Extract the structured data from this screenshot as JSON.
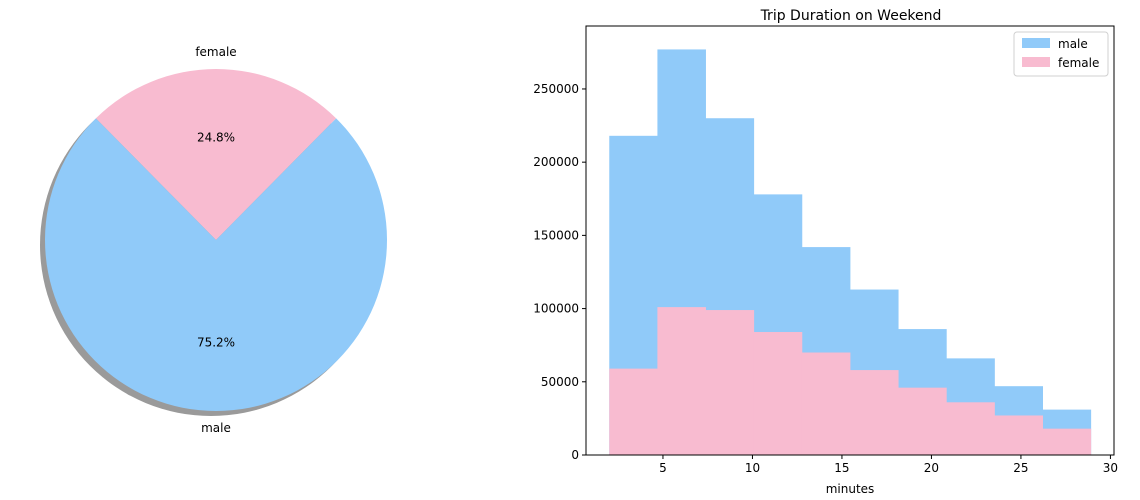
{
  "colors": {
    "male": "#90caf9",
    "female": "#f8bbd0",
    "shadow": "#9a9a9a",
    "axis": "#000000"
  },
  "chart_data": [
    {
      "type": "pie",
      "title": "",
      "labels": [
        "female",
        "male"
      ],
      "values": [
        24.8,
        75.2
      ],
      "percent_labels": [
        "24.8%",
        "75.2%"
      ],
      "colors": [
        "#f8bbd0",
        "#90caf9"
      ],
      "shadow": true
    },
    {
      "type": "bar",
      "subtype": "overlaid-histogram",
      "title": "Trip Duration on Weekend",
      "xlabel": "minutes",
      "ylabel": "",
      "xlim": [
        0.7,
        30.2
      ],
      "ylim": [
        0,
        293000
      ],
      "x_ticks": [
        5,
        10,
        15,
        20,
        25,
        30
      ],
      "y_ticks": [
        0,
        50000,
        100000,
        150000,
        200000,
        250000
      ],
      "bin_edges": [
        2.0,
        4.69,
        7.38,
        10.07,
        12.76,
        15.45,
        18.14,
        20.83,
        23.52,
        26.21,
        28.9
      ],
      "series": [
        {
          "name": "male",
          "color": "#90caf9",
          "values": [
            218000,
            277000,
            230000,
            178000,
            142000,
            113000,
            86000,
            66000,
            47000,
            31000
          ]
        },
        {
          "name": "female",
          "color": "#f8bbd0",
          "values": [
            59000,
            101000,
            99000,
            84000,
            70000,
            58000,
            46000,
            36000,
            27000,
            18000
          ]
        }
      ],
      "legend": {
        "position": "top-right",
        "entries": [
          "male",
          "female"
        ]
      },
      "grid": false
    }
  ]
}
